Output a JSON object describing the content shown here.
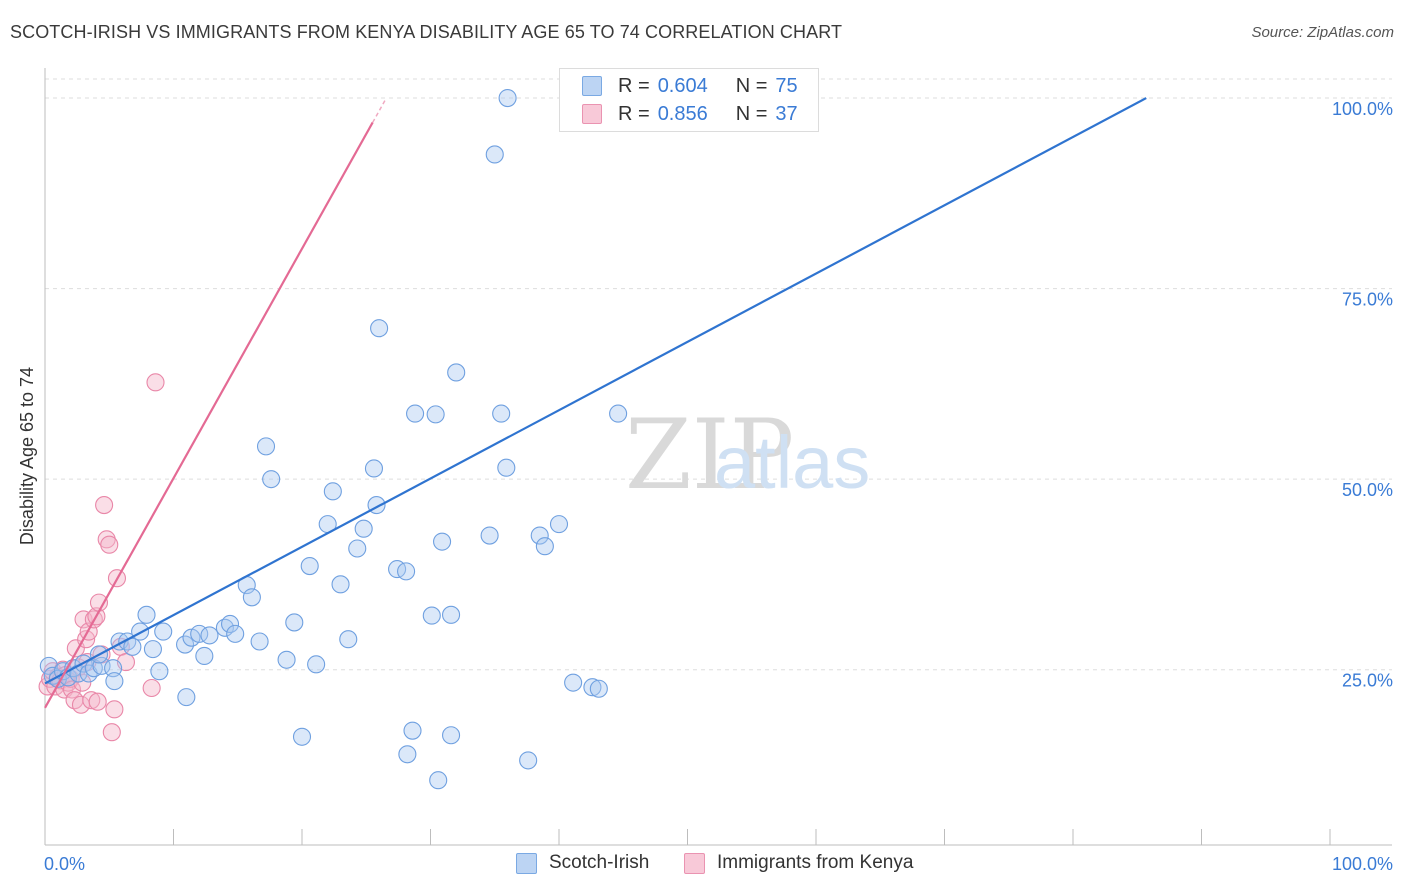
{
  "header": {
    "title": "SCOTCH-IRISH VS IMMIGRANTS FROM KENYA DISABILITY AGE 65 TO 74 CORRELATION CHART",
    "source": "Source: ZipAtlas.com"
  },
  "watermark": {
    "zip": "ZIP",
    "atlas": "atlas"
  },
  "legend": {
    "rows": [
      {
        "r_label": "R =",
        "r_value": "0.604",
        "n_label": "N =",
        "n_value": "75",
        "color": "#a9c8f0"
      },
      {
        "r_label": "R =",
        "r_value": "0.856",
        "n_label": "N =",
        "n_value": "37",
        "color": "#f5b6c9"
      }
    ]
  },
  "bottom_legend": [
    {
      "label": "Scotch-Irish",
      "color": "#a9c8f0"
    },
    {
      "label": "Immigrants from Kenya",
      "color": "#f5b6c9"
    }
  ],
  "chart_data": {
    "type": "scatter",
    "title": "SCOTCH-IRISH VS IMMIGRANTS FROM KENYA DISABILITY AGE 65 TO 74 CORRELATION CHART",
    "xlabel": "",
    "ylabel": "Disability Age 65 to 74",
    "xlim": [
      0,
      100
    ],
    "ylim": [
      2,
      102.5
    ],
    "x_tick_labels": [
      "0.0%",
      "100.0%"
    ],
    "y_ticks": [
      25,
      50,
      75,
      100
    ],
    "y_tick_labels": [
      "25.0%",
      "50.0%",
      "75.0%",
      "100.0%"
    ],
    "grid": true,
    "legend_position": "top-center",
    "colors": {
      "blue_fill": "#a9c8f0",
      "blue_stroke": "#6fa0e0",
      "blue_line": "#2f74d0",
      "pink_fill": "#f5b6c9",
      "pink_stroke": "#e987a8",
      "pink_line": "#e46a94",
      "tick_label": "#3a7bd5"
    },
    "series": [
      {
        "name": "Scotch-Irish",
        "r": 0.604,
        "n": 75,
        "trend": {
          "x": [
            0,
            85.7
          ],
          "y": [
            23.2,
            100
          ]
        },
        "points": [
          [
            0.3,
            25.5
          ],
          [
            0.6,
            24.2
          ],
          [
            1.0,
            23.8
          ],
          [
            1.4,
            24.8
          ],
          [
            1.8,
            24.0
          ],
          [
            2.2,
            25.2
          ],
          [
            2.6,
            24.5
          ],
          [
            3.0,
            25.8
          ],
          [
            3.4,
            24.5
          ],
          [
            3.8,
            25.2
          ],
          [
            4.4,
            25.5
          ],
          [
            4.2,
            27.0
          ],
          [
            5.3,
            25.2
          ],
          [
            5.4,
            23.5
          ],
          [
            5.8,
            28.7
          ],
          [
            6.4,
            28.7
          ],
          [
            6.8,
            28.0
          ],
          [
            7.4,
            30.0
          ],
          [
            7.9,
            32.2
          ],
          [
            8.4,
            27.7
          ],
          [
            8.9,
            24.8
          ],
          [
            9.2,
            30.0
          ],
          [
            10.9,
            28.3
          ],
          [
            11.4,
            29.2
          ],
          [
            12.0,
            29.7
          ],
          [
            12.4,
            26.8
          ],
          [
            11.0,
            21.4
          ],
          [
            12.8,
            29.5
          ],
          [
            14.0,
            30.5
          ],
          [
            14.4,
            31.0
          ],
          [
            14.8,
            29.7
          ],
          [
            15.7,
            36.1
          ],
          [
            16.1,
            34.5
          ],
          [
            16.7,
            28.7
          ],
          [
            17.2,
            54.3
          ],
          [
            17.6,
            50.0
          ],
          [
            18.8,
            26.3
          ],
          [
            19.4,
            31.2
          ],
          [
            20.0,
            16.2
          ],
          [
            20.6,
            38.6
          ],
          [
            21.1,
            25.7
          ],
          [
            22.0,
            44.1
          ],
          [
            22.4,
            48.4
          ],
          [
            23.0,
            36.2
          ],
          [
            23.6,
            29.0
          ],
          [
            24.3,
            40.9
          ],
          [
            24.8,
            43.5
          ],
          [
            25.8,
            46.6
          ],
          [
            25.6,
            51.4
          ],
          [
            27.4,
            38.2
          ],
          [
            28.1,
            37.9
          ],
          [
            28.6,
            17.0
          ],
          [
            30.1,
            32.1
          ],
          [
            30.9,
            41.8
          ],
          [
            31.6,
            32.2
          ],
          [
            26.0,
            69.8
          ],
          [
            28.2,
            13.9
          ],
          [
            28.8,
            58.6
          ],
          [
            30.4,
            58.5
          ],
          [
            32.0,
            64.0
          ],
          [
            34.6,
            42.6
          ],
          [
            35.5,
            58.6
          ],
          [
            38.5,
            42.6
          ],
          [
            40.0,
            44.1
          ],
          [
            31.6,
            16.4
          ],
          [
            35.9,
            51.5
          ],
          [
            30.6,
            10.5
          ],
          [
            37.6,
            13.1
          ],
          [
            38.9,
            41.2
          ],
          [
            41.1,
            23.3
          ],
          [
            42.6,
            22.7
          ],
          [
            43.1,
            22.5
          ],
          [
            44.6,
            58.6
          ],
          [
            35.0,
            92.6
          ],
          [
            36.0,
            100.0
          ]
        ]
      },
      {
        "name": "Immigrants from Kenya",
        "r": 0.856,
        "n": 37,
        "trend": {
          "x": [
            0,
            25.5
          ],
          "y": [
            20.0,
            96.8
          ]
        },
        "points": [
          [
            0.2,
            22.8
          ],
          [
            0.4,
            23.8
          ],
          [
            0.6,
            24.8
          ],
          [
            0.8,
            22.8
          ],
          [
            1.0,
            24.1
          ],
          [
            1.2,
            23.6
          ],
          [
            1.4,
            25.0
          ],
          [
            1.5,
            22.4
          ],
          [
            1.6,
            24.3
          ],
          [
            1.8,
            23.3
          ],
          [
            2.0,
            23.8
          ],
          [
            2.1,
            22.4
          ],
          [
            2.3,
            21.0
          ],
          [
            2.4,
            27.8
          ],
          [
            2.6,
            25.3
          ],
          [
            2.8,
            20.4
          ],
          [
            2.9,
            23.3
          ],
          [
            3.0,
            31.6
          ],
          [
            3.2,
            29.0
          ],
          [
            3.3,
            26.0
          ],
          [
            3.4,
            30.0
          ],
          [
            3.6,
            21.0
          ],
          [
            3.8,
            31.6
          ],
          [
            4.0,
            32.0
          ],
          [
            4.1,
            20.8
          ],
          [
            4.2,
            33.8
          ],
          [
            4.4,
            27.0
          ],
          [
            4.6,
            46.6
          ],
          [
            4.8,
            42.1
          ],
          [
            5.0,
            41.4
          ],
          [
            5.2,
            16.8
          ],
          [
            5.4,
            19.8
          ],
          [
            5.6,
            37.0
          ],
          [
            5.9,
            28.0
          ],
          [
            6.3,
            26.0
          ],
          [
            8.3,
            22.6
          ],
          [
            8.6,
            62.7
          ]
        ]
      }
    ]
  }
}
